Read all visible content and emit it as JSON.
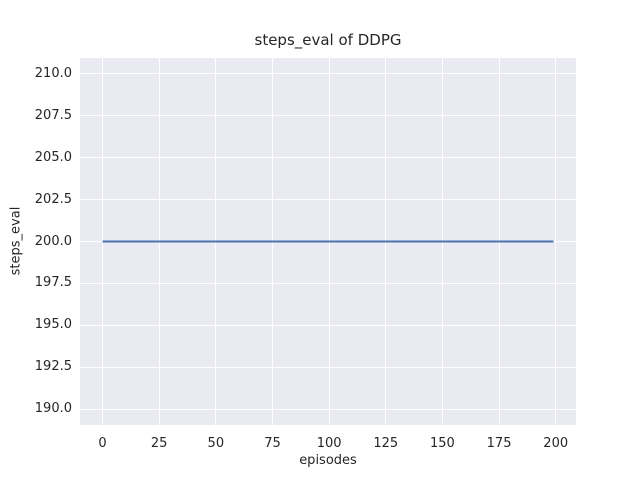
{
  "chart_data": {
    "type": "line",
    "title": "steps_eval of DDPG",
    "xlabel": "episodes",
    "ylabel": "steps_eval",
    "xlim": [
      -9.95,
      208.95
    ],
    "ylim": [
      189.05,
      210.95
    ],
    "x_tick_values": [
      0,
      25,
      50,
      75,
      100,
      125,
      150,
      175,
      200
    ],
    "x_tick_labels": [
      "0",
      "25",
      "50",
      "75",
      "100",
      "125",
      "150",
      "175",
      "200"
    ],
    "y_tick_values": [
      190.0,
      192.5,
      195.0,
      197.5,
      200.0,
      202.5,
      205.0,
      207.5,
      210.0
    ],
    "y_tick_labels": [
      "190.0",
      "192.5",
      "195.0",
      "197.5",
      "200.0",
      "202.5",
      "205.0",
      "207.5",
      "210.0"
    ],
    "grid": true,
    "legend": "none",
    "style": {
      "plot_bg": "#eaeaf2",
      "grid_color": "#ffffff",
      "text_color": "#262626",
      "figure_bg": "#ffffff",
      "line_width": 2
    },
    "series": [
      {
        "name": "DDPG steps_eval",
        "color": "#4c72b0",
        "x": [
          0,
          199
        ],
        "values": [
          200,
          200
        ]
      }
    ]
  }
}
